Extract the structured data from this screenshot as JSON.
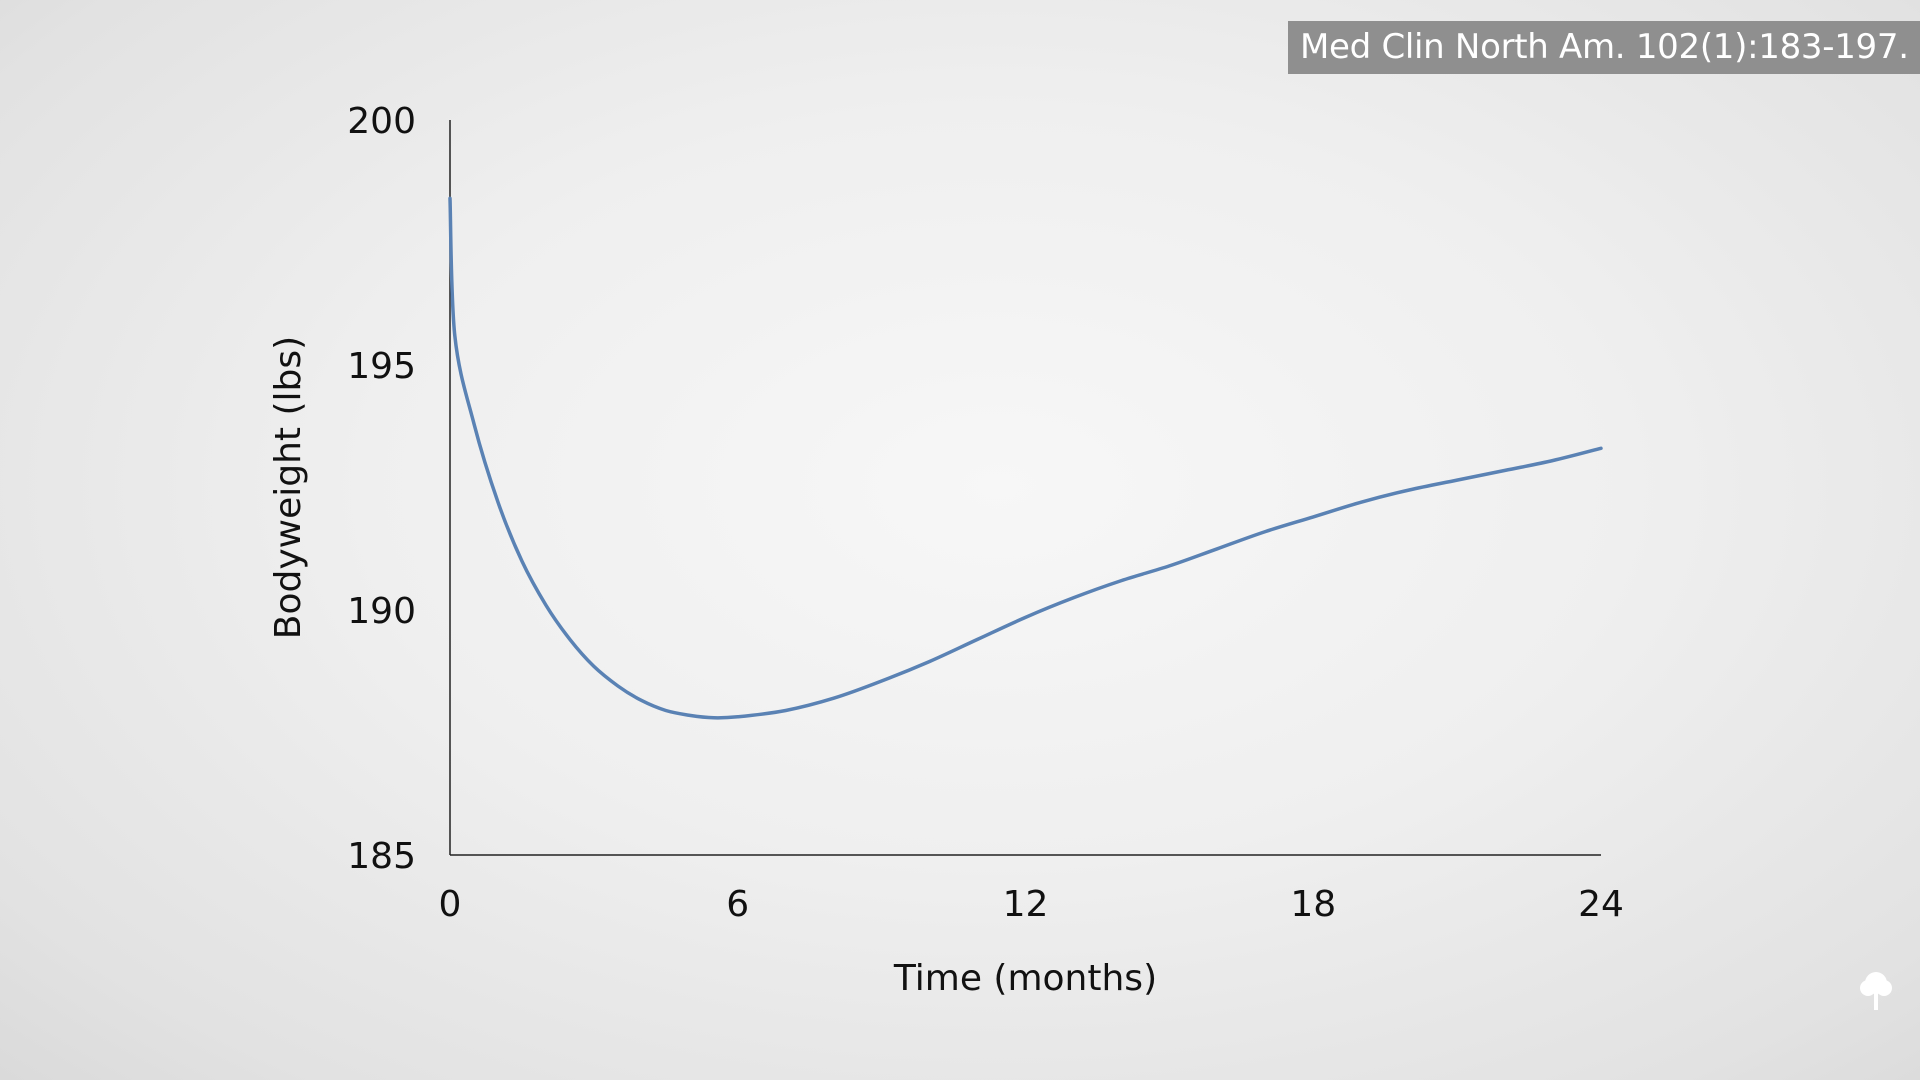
{
  "citation": "Med Clin North Am. 102(1):183-197.",
  "chart_data": {
    "type": "line",
    "title": "",
    "xlabel": "Time (months)",
    "ylabel": "Bodyweight (lbs)",
    "xlim": [
      0,
      24
    ],
    "ylim": [
      185,
      200
    ],
    "xticks": [
      0,
      6,
      12,
      18,
      24
    ],
    "yticks": [
      185,
      190,
      195,
      200
    ],
    "grid": false,
    "legend": "none",
    "series": [
      {
        "color": "#5a82b4",
        "x": [
          0,
          0.1,
          0.5,
          1,
          1.5,
          2,
          2.5,
          3,
          3.5,
          4,
          4.5,
          5,
          5.5,
          6,
          7,
          8,
          9,
          10,
          11,
          12,
          13,
          14,
          15,
          16,
          17,
          18,
          19,
          20,
          21,
          22,
          23,
          24
        ],
        "y": [
          198.4,
          195.6,
          193.8,
          192.2,
          191.0,
          190.1,
          189.4,
          188.85,
          188.45,
          188.15,
          187.95,
          187.85,
          187.8,
          187.82,
          187.95,
          188.2,
          188.55,
          188.95,
          189.4,
          189.85,
          190.25,
          190.6,
          190.9,
          191.25,
          191.6,
          191.9,
          192.2,
          192.45,
          192.65,
          192.85,
          193.05,
          193.3
        ]
      }
    ]
  },
  "icons": {
    "logo": "tree-icon"
  }
}
